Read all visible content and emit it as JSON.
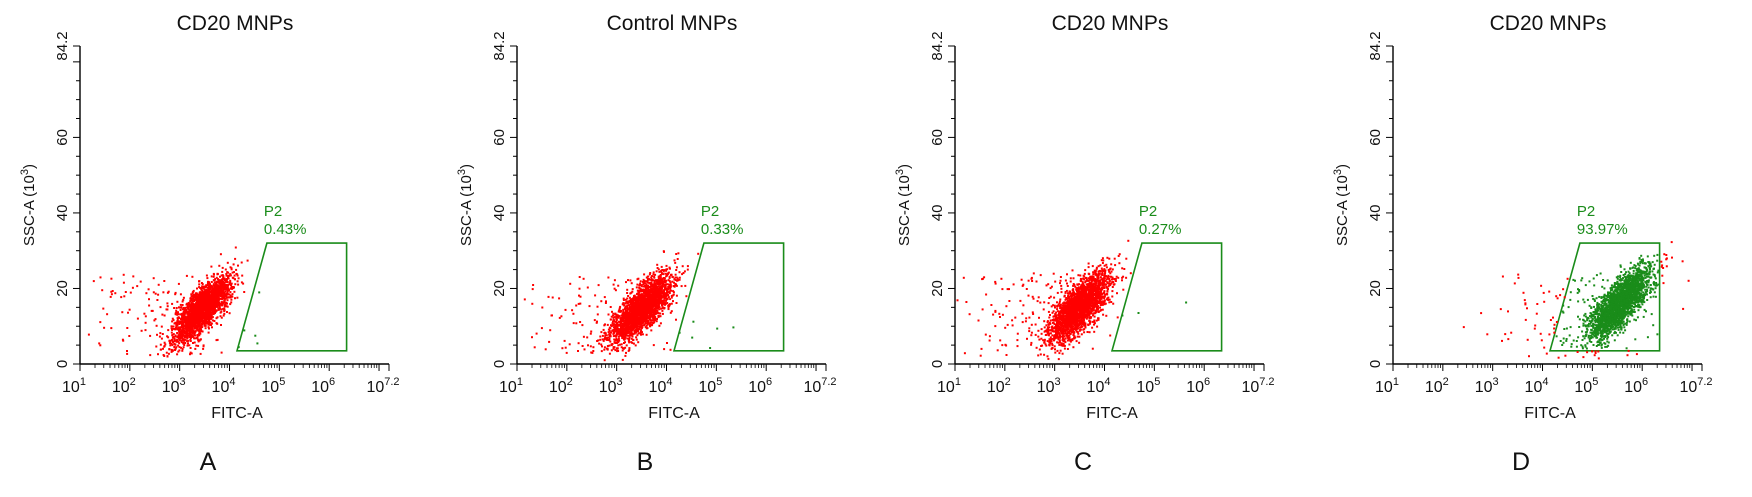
{
  "chart_data": [
    {
      "type": "scatter",
      "panel_label": "A",
      "title": "CD20 MNPs",
      "xlabel": "FITC-A",
      "ylabel_main": "SSC-A (10",
      "ylabel_sup": "3",
      "ylabel_end": ")",
      "xscale": "log",
      "xlim_log10": [
        1,
        7.2
      ],
      "ylim": [
        0,
        84.2
      ],
      "x_ticks": [
        {
          "base": "10",
          "exp": "1"
        },
        {
          "base": "10",
          "exp": "2"
        },
        {
          "base": "10",
          "exp": "3"
        },
        {
          "base": "10",
          "exp": "4"
        },
        {
          "base": "10",
          "exp": "5"
        },
        {
          "base": "10",
          "exp": "6"
        },
        {
          "base": "10",
          "exp": "7.2"
        }
      ],
      "y_ticks": [
        "0",
        "20",
        "40",
        "60",
        "84.2"
      ],
      "gate": {
        "name": "P2",
        "percent": "0.43%",
        "color": "#1a8c1a",
        "vertices_log10x_y": [
          [
            4.15,
            3.5
          ],
          [
            4.75,
            32.0
          ],
          [
            6.35,
            32.0
          ],
          [
            6.35,
            3.5
          ]
        ]
      },
      "population": {
        "center_log10x": 3.45,
        "center_y": 14.5,
        "spread_x": 0.28,
        "spread_y": 4.2,
        "inside_gate_color": "#1a8c1a",
        "outside_gate_color": "#ff0000"
      },
      "grid": false,
      "legend": "none"
    },
    {
      "type": "scatter",
      "panel_label": "B",
      "title": "Control MNPs",
      "xlabel": "FITC-A",
      "ylabel_main": "SSC-A (10",
      "ylabel_sup": "3",
      "ylabel_end": ")",
      "xscale": "log",
      "xlim_log10": [
        1,
        7.2
      ],
      "ylim": [
        0,
        84.2
      ],
      "x_ticks": [
        {
          "base": "10",
          "exp": "1"
        },
        {
          "base": "10",
          "exp": "2"
        },
        {
          "base": "10",
          "exp": "3"
        },
        {
          "base": "10",
          "exp": "4"
        },
        {
          "base": "10",
          "exp": "5"
        },
        {
          "base": "10",
          "exp": "6"
        },
        {
          "base": "10",
          "exp": "7.2"
        }
      ],
      "y_ticks": [
        "0",
        "20",
        "40",
        "60",
        "84.2"
      ],
      "gate": {
        "name": "P2",
        "percent": "0.33%",
        "color": "#1a8c1a",
        "vertices_log10x_y": [
          [
            4.15,
            3.5
          ],
          [
            4.75,
            32.0
          ],
          [
            6.35,
            32.0
          ],
          [
            6.35,
            3.5
          ]
        ]
      },
      "population": {
        "center_log10x": 3.5,
        "center_y": 14.5,
        "spread_x": 0.3,
        "spread_y": 4.4,
        "inside_gate_color": "#1a8c1a",
        "outside_gate_color": "#ff0000"
      },
      "grid": false,
      "legend": "none"
    },
    {
      "type": "scatter",
      "panel_label": "C",
      "title": "CD20 MNPs",
      "xlabel": "FITC-A",
      "ylabel_main": "SSC-A (10",
      "ylabel_sup": "3",
      "ylabel_end": ")",
      "xscale": "log",
      "xlim_log10": [
        1,
        7.2
      ],
      "ylim": [
        0,
        84.2
      ],
      "x_ticks": [
        {
          "base": "10",
          "exp": "1"
        },
        {
          "base": "10",
          "exp": "2"
        },
        {
          "base": "10",
          "exp": "3"
        },
        {
          "base": "10",
          "exp": "4"
        },
        {
          "base": "10",
          "exp": "5"
        },
        {
          "base": "10",
          "exp": "6"
        },
        {
          "base": "10",
          "exp": "7.2"
        }
      ],
      "y_ticks": [
        "0",
        "20",
        "40",
        "60",
        "84.2"
      ],
      "gate": {
        "name": "P2",
        "percent": "0.27%",
        "color": "#1a8c1a",
        "vertices_log10x_y": [
          [
            4.15,
            3.5
          ],
          [
            4.75,
            32.0
          ],
          [
            6.35,
            32.0
          ],
          [
            6.35,
            3.5
          ]
        ]
      },
      "population": {
        "center_log10x": 3.5,
        "center_y": 15.0,
        "spread_x": 0.3,
        "spread_y": 4.6,
        "inside_gate_color": "#1a8c1a",
        "outside_gate_color": "#ff0000"
      },
      "grid": false,
      "legend": "none"
    },
    {
      "type": "scatter",
      "panel_label": "D",
      "title": "CD20 MNPs",
      "xlabel": "FITC-A",
      "ylabel_main": "SSC-A (10",
      "ylabel_sup": "3",
      "ylabel_end": ")",
      "xscale": "log",
      "xlim_log10": [
        1,
        7.2
      ],
      "ylim": [
        0,
        84.2
      ],
      "x_ticks": [
        {
          "base": "10",
          "exp": "1"
        },
        {
          "base": "10",
          "exp": "2"
        },
        {
          "base": "10",
          "exp": "3"
        },
        {
          "base": "10",
          "exp": "4"
        },
        {
          "base": "10",
          "exp": "5"
        },
        {
          "base": "10",
          "exp": "6"
        },
        {
          "base": "10",
          "exp": "7.2"
        }
      ],
      "y_ticks": [
        "0",
        "20",
        "40",
        "60",
        "84.2"
      ],
      "gate": {
        "name": "P2",
        "percent": "93.97%",
        "color": "#1a8c1a",
        "vertices_log10x_y": [
          [
            4.15,
            3.5
          ],
          [
            4.75,
            32.0
          ],
          [
            6.35,
            32.0
          ],
          [
            6.35,
            3.5
          ]
        ]
      },
      "population": {
        "center_log10x": 5.55,
        "center_y": 16.0,
        "spread_x": 0.3,
        "spread_y": 4.6,
        "inside_gate_color": "#1a8c1a",
        "outside_gate_color": "#ff0000"
      },
      "grid": false,
      "legend": "none"
    }
  ]
}
